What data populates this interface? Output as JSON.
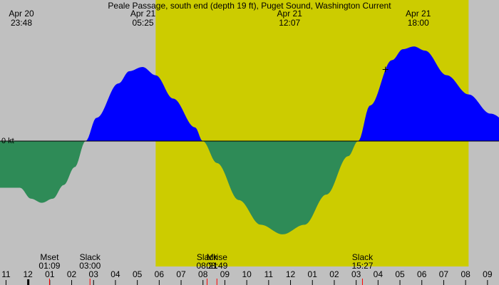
{
  "chart_data": {
    "type": "area",
    "title": "Peale Passage, south end (depth 19 ft), Puget Sound, Washington Current",
    "zero_label": "0 kt",
    "x_unit": "hours since Apr 20 23:48",
    "x_range": [
      0,
      22.7
    ],
    "colors": {
      "background_night": "#c0c0c0",
      "background_day": "#cccc00",
      "flood": "#0000ff",
      "ebb": "#2e8b57",
      "event_tick": "#ff0000"
    },
    "daylight": {
      "start_label": "Apr 21 06:00",
      "start_h": 6.2,
      "end_label": "Apr 21 20:15",
      "end_h": 20.5
    },
    "top_labels": [
      {
        "date": "Apr 20",
        "time": "23:48",
        "h": 0.0
      },
      {
        "date": "Apr 21",
        "time": "05:25",
        "h": 5.62
      },
      {
        "date": "Apr 21",
        "time": "12:07",
        "h": 12.32
      },
      {
        "date": "Apr 21",
        "time": "18:00",
        "h": 18.2
      }
    ],
    "series": [
      {
        "values_kt": [
          [
            0.0,
            -1.7
          ],
          [
            0.5,
            -2.1
          ],
          [
            1.0,
            -2.25
          ],
          [
            1.5,
            -2.1
          ],
          [
            2.0,
            -1.6
          ],
          [
            2.5,
            -0.95
          ],
          [
            3.0,
            0.0
          ],
          [
            3.5,
            0.85
          ],
          [
            4.5,
            2.1
          ],
          [
            5.0,
            2.55
          ],
          [
            5.6,
            2.7
          ],
          [
            6.2,
            2.4
          ],
          [
            7.0,
            1.55
          ],
          [
            8.0,
            0.5
          ],
          [
            8.35,
            0.0
          ],
          [
            9.0,
            -0.8
          ],
          [
            10.0,
            -2.15
          ],
          [
            11.0,
            -3.05
          ],
          [
            12.0,
            -3.4
          ],
          [
            13.0,
            -3.05
          ],
          [
            14.0,
            -1.95
          ],
          [
            15.0,
            -0.55
          ],
          [
            15.45,
            0.0
          ],
          [
            16.0,
            1.3
          ],
          [
            17.0,
            2.95
          ],
          [
            17.5,
            3.35
          ],
          [
            18.0,
            3.45
          ],
          [
            18.5,
            3.3
          ],
          [
            19.5,
            2.4
          ],
          [
            20.5,
            1.7
          ],
          [
            21.5,
            1.0
          ],
          [
            22.7,
            0.4
          ]
        ]
      }
    ],
    "events": [
      {
        "label": "Mset",
        "time": "01:09",
        "h": 1.35,
        "tick": true
      },
      {
        "label": "Slack",
        "time": "03:00",
        "h": 3.2,
        "tick": true
      },
      {
        "label": "Slack",
        "time": "08:21",
        "h": 8.55,
        "tick": true
      },
      {
        "label": "Mrise",
        "time": "08:49",
        "h": 9.0,
        "tick": true
      },
      {
        "label": "Slack",
        "time": "15:27",
        "h": 15.65,
        "tick": true
      }
    ],
    "hour_ticks": [
      {
        "label": "11",
        "h": -0.8
      },
      {
        "label": "12",
        "h": 0.2
      },
      {
        "label": "01",
        "h": 1.2
      },
      {
        "label": "02",
        "h": 2.2
      },
      {
        "label": "03",
        "h": 3.2
      },
      {
        "label": "04",
        "h": 4.2
      },
      {
        "label": "05",
        "h": 5.2
      },
      {
        "label": "06",
        "h": 6.2
      },
      {
        "label": "07",
        "h": 7.2
      },
      {
        "label": "08",
        "h": 8.2
      },
      {
        "label": "09",
        "h": 9.2
      },
      {
        "label": "10",
        "h": 10.2
      },
      {
        "label": "11",
        "h": 11.2
      },
      {
        "label": "12",
        "h": 12.2
      },
      {
        "label": "01",
        "h": 13.2
      },
      {
        "label": "02",
        "h": 14.2
      },
      {
        "label": "03",
        "h": 15.2
      },
      {
        "label": "04",
        "h": 16.2
      },
      {
        "label": "05",
        "h": 17.2
      },
      {
        "label": "06",
        "h": 18.2
      },
      {
        "label": "07",
        "h": 19.2
      },
      {
        "label": "08",
        "h": 20.2
      },
      {
        "label": "09",
        "h": 21.2
      }
    ],
    "midnight_marker_h": 0.2,
    "now_marker_h": 16.7
  }
}
